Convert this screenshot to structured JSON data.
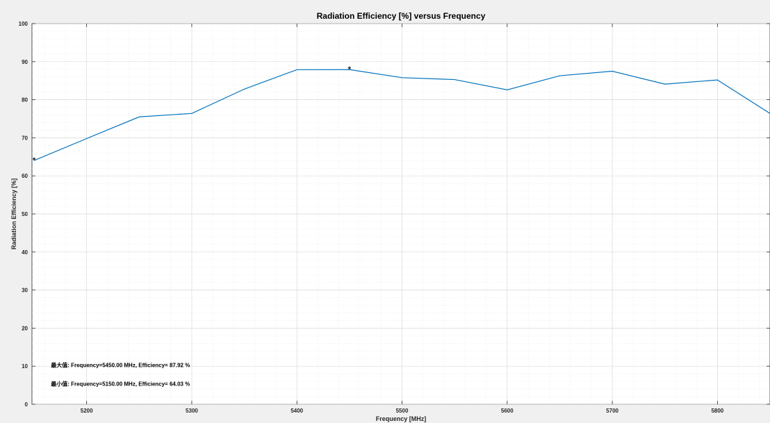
{
  "chart_data": {
    "type": "line",
    "title": "Radiation Efficiency [%] versus Frequency",
    "xlabel": "Frequency [MHz]",
    "ylabel": "Radiation Efficiency [%]",
    "xlim": [
      5148,
      5850
    ],
    "ylim": [
      0,
      100
    ],
    "xticks": [
      5200,
      5300,
      5400,
      5500,
      5600,
      5700,
      5800
    ],
    "yticks": [
      0,
      10,
      20,
      30,
      40,
      50,
      60,
      70,
      80,
      90,
      100
    ],
    "grid": true,
    "minor_grid": true,
    "series": [
      {
        "x": [
          5150,
          5200,
          5250,
          5300,
          5350,
          5400,
          5450,
          5500,
          5550,
          5600,
          5650,
          5700,
          5750,
          5800,
          5850
        ],
        "y": [
          64.03,
          69.8,
          75.5,
          76.4,
          82.8,
          87.9,
          87.92,
          85.8,
          85.3,
          82.6,
          86.3,
          87.5,
          84.1,
          85.2,
          76.4
        ],
        "color": "#0072BD"
      }
    ],
    "markers": [
      {
        "name": "max",
        "x": 5450,
        "y": 87.92,
        "symbol": "*",
        "color": "#D95319"
      },
      {
        "name": "min",
        "x": 5150,
        "y": 64.03,
        "symbol": "*",
        "color": "#EDB120"
      }
    ],
    "annotations": [
      {
        "text": "最大值: Frequency=5450.00 MHz, Efficiency= 87.92 %",
        "x": 5166,
        "y": 9.8
      },
      {
        "text": "最小值: Frequency=5150.00 MHz, Efficiency= 64.03 %",
        "x": 5166,
        "y": 4.8
      }
    ]
  }
}
